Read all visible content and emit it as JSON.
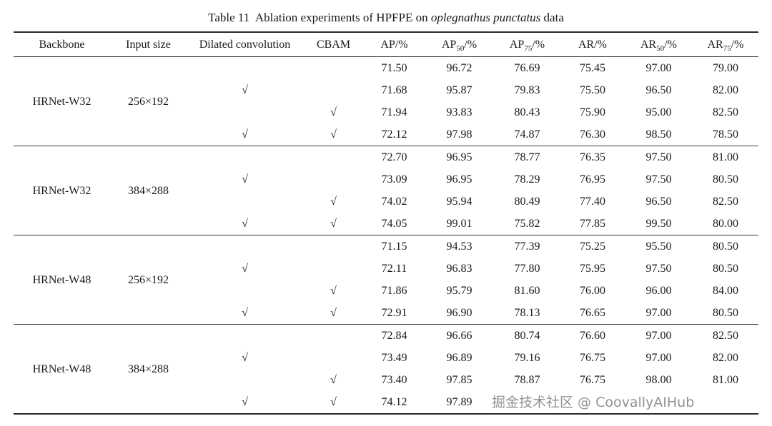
{
  "title": {
    "prefix": "Table 11  Ablation experiments of HPFPE on ",
    "italic": "oplegnathus punctatus",
    "suffix": " data"
  },
  "header": {
    "backbone": "Backbone",
    "input_size": "Input size",
    "dilated": "Dilated convolution",
    "cbam": "CBAM",
    "ap": "AP/%",
    "ap50_base": "AP",
    "ap50_sub": "50",
    "ap50_rest": "/%",
    "ap75_base": "AP",
    "ap75_sub": "75",
    "ap75_rest": "/%",
    "ar": "AR/%",
    "ar50_base": "AR",
    "ar50_sub": "50",
    "ar50_rest": "/%",
    "ar75_base": "AR",
    "ar75_sub": "75",
    "ar75_rest": "/%"
  },
  "checkmark": "√",
  "groups": [
    {
      "backbone": "HRNet-W32",
      "input_size": "256×192",
      "rows": [
        {
          "dilated": "",
          "cbam": "",
          "ap": "71.50",
          "ap50": "96.72",
          "ap75": "76.69",
          "ar": "75.45",
          "ar50": "97.00",
          "ar75": "79.00"
        },
        {
          "dilated": "√",
          "cbam": "",
          "ap": "71.68",
          "ap50": "95.87",
          "ap75": "79.83",
          "ar": "75.50",
          "ar50": "96.50",
          "ar75": "82.00"
        },
        {
          "dilated": "",
          "cbam": "√",
          "ap": "71.94",
          "ap50": "93.83",
          "ap75": "80.43",
          "ar": "75.90",
          "ar50": "95.00",
          "ar75": "82.50"
        },
        {
          "dilated": "√",
          "cbam": "√",
          "ap": "72.12",
          "ap50": "97.98",
          "ap75": "74.87",
          "ar": "76.30",
          "ar50": "98.50",
          "ar75": "78.50"
        }
      ]
    },
    {
      "backbone": "HRNet-W32",
      "input_size": "384×288",
      "rows": [
        {
          "dilated": "",
          "cbam": "",
          "ap": "72.70",
          "ap50": "96.95",
          "ap75": "78.77",
          "ar": "76.35",
          "ar50": "97.50",
          "ar75": "81.00"
        },
        {
          "dilated": "√",
          "cbam": "",
          "ap": "73.09",
          "ap50": "96.95",
          "ap75": "78.29",
          "ar": "76.95",
          "ar50": "97.50",
          "ar75": "80.50"
        },
        {
          "dilated": "",
          "cbam": "√",
          "ap": "74.02",
          "ap50": "95.94",
          "ap75": "80.49",
          "ar": "77.40",
          "ar50": "96.50",
          "ar75": "82.50"
        },
        {
          "dilated": "√",
          "cbam": "√",
          "ap": "74.05",
          "ap50": "99.01",
          "ap75": "75.82",
          "ar": "77.85",
          "ar50": "99.50",
          "ar75": "80.00"
        }
      ]
    },
    {
      "backbone": "HRNet-W48",
      "input_size": "256×192",
      "rows": [
        {
          "dilated": "",
          "cbam": "",
          "ap": "71.15",
          "ap50": "94.53",
          "ap75": "77.39",
          "ar": "75.25",
          "ar50": "95.50",
          "ar75": "80.50"
        },
        {
          "dilated": "√",
          "cbam": "",
          "ap": "72.11",
          "ap50": "96.83",
          "ap75": "77.80",
          "ar": "75.95",
          "ar50": "97.50",
          "ar75": "80.50"
        },
        {
          "dilated": "",
          "cbam": "√",
          "ap": "71.86",
          "ap50": "95.79",
          "ap75": "81.60",
          "ar": "76.00",
          "ar50": "96.00",
          "ar75": "84.00"
        },
        {
          "dilated": "√",
          "cbam": "√",
          "ap": "72.91",
          "ap50": "96.90",
          "ap75": "78.13",
          "ar": "76.65",
          "ar50": "97.00",
          "ar75": "80.50"
        }
      ]
    },
    {
      "backbone": "HRNet-W48",
      "input_size": "384×288",
      "rows": [
        {
          "dilated": "",
          "cbam": "",
          "ap": "72.84",
          "ap50": "96.66",
          "ap75": "80.74",
          "ar": "76.60",
          "ar50": "97.00",
          "ar75": "82.50"
        },
        {
          "dilated": "√",
          "cbam": "",
          "ap": "73.49",
          "ap50": "96.89",
          "ap75": "79.16",
          "ar": "76.75",
          "ar50": "97.00",
          "ar75": "82.00"
        },
        {
          "dilated": "",
          "cbam": "√",
          "ap": "73.40",
          "ap50": "97.85",
          "ap75": "78.87",
          "ar": "76.75",
          "ar50": "98.00",
          "ar75": "81.00"
        },
        {
          "dilated": "√",
          "cbam": "√",
          "ap": "74.12",
          "ap50": "97.89",
          "ap75": "",
          "ar": "",
          "ar50": "",
          "ar75": ""
        }
      ]
    }
  ],
  "watermark": "掘金技术社区 @ CoovallyAIHub"
}
